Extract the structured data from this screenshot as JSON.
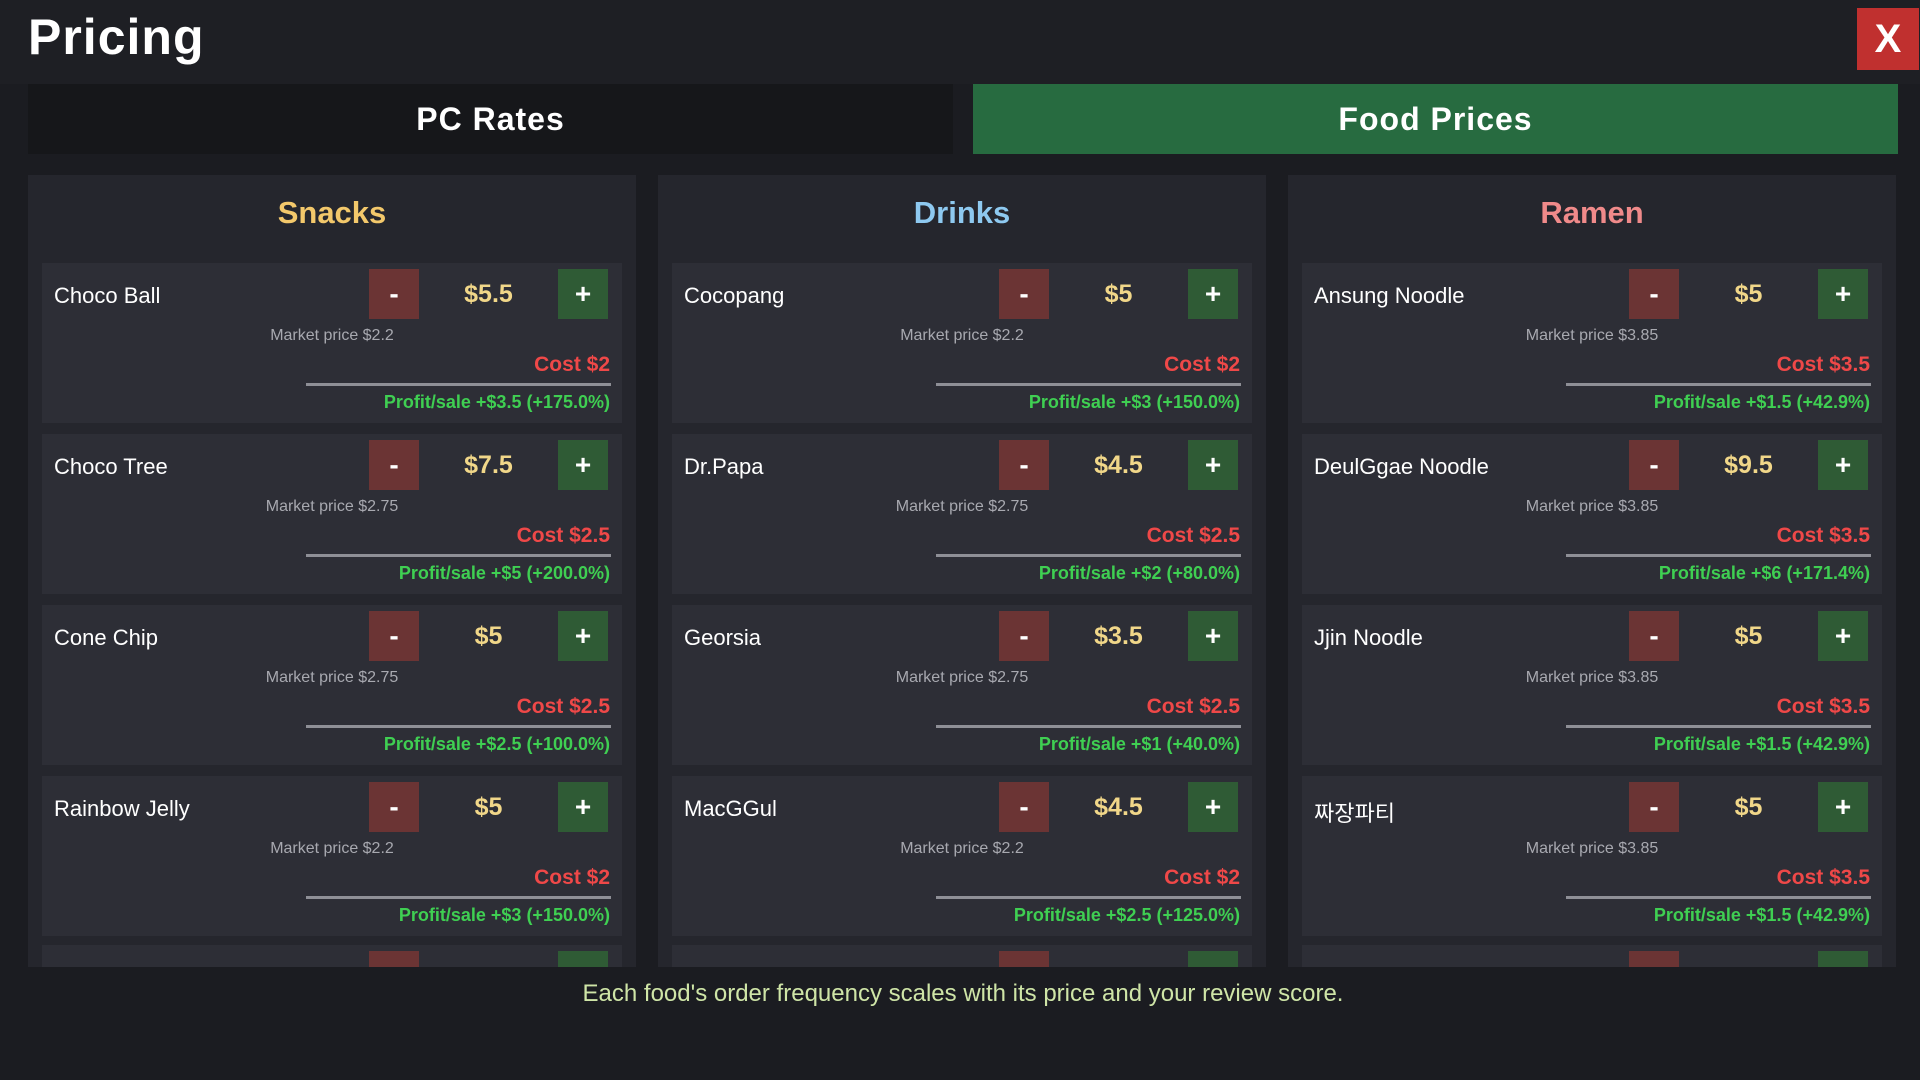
{
  "window": {
    "title": "Pricing",
    "close_label": "X"
  },
  "tabs": [
    {
      "label": "PC Rates",
      "active": false
    },
    {
      "label": "Food Prices",
      "active": true
    }
  ],
  "colors": {
    "active_tab": "#276b40",
    "snacks_title": "#f3c86b",
    "drinks_title": "#8ec9f0",
    "ramen_title": "#f08a8a",
    "price": "#f1d789",
    "cost": "#ef4848",
    "profit": "#3fcf52",
    "close": "#c0302f"
  },
  "buttons": {
    "minus": "-",
    "plus": "+"
  },
  "categories": [
    {
      "title": "Snacks",
      "items": [
        {
          "name": "Choco Ball",
          "price": "$5.5",
          "market": "Market price $2.2",
          "cost": "Cost $2",
          "profit": "Profit/sale +$3.5 (+175.0%)"
        },
        {
          "name": "Choco Tree",
          "price": "$7.5",
          "market": "Market price $2.75",
          "cost": "Cost $2.5",
          "profit": "Profit/sale +$5 (+200.0%)"
        },
        {
          "name": "Cone Chip",
          "price": "$5",
          "market": "Market price $2.75",
          "cost": "Cost $2.5",
          "profit": "Profit/sale +$2.5 (+100.0%)"
        },
        {
          "name": "Rainbow Jelly",
          "price": "$5",
          "market": "Market price $2.2",
          "cost": "Cost $2",
          "profit": "Profit/sale +$3 (+150.0%)"
        }
      ]
    },
    {
      "title": "Drinks",
      "items": [
        {
          "name": "Cocopang",
          "price": "$5",
          "market": "Market price $2.2",
          "cost": "Cost $2",
          "profit": "Profit/sale +$3 (+150.0%)"
        },
        {
          "name": "Dr.Papa",
          "price": "$4.5",
          "market": "Market price $2.75",
          "cost": "Cost $2.5",
          "profit": "Profit/sale +$2 (+80.0%)"
        },
        {
          "name": "Georsia",
          "price": "$3.5",
          "market": "Market price $2.75",
          "cost": "Cost $2.5",
          "profit": "Profit/sale +$1 (+40.0%)"
        },
        {
          "name": "MacGGul",
          "price": "$4.5",
          "market": "Market price $2.2",
          "cost": "Cost $2",
          "profit": "Profit/sale +$2.5 (+125.0%)"
        }
      ]
    },
    {
      "title": "Ramen",
      "items": [
        {
          "name": "Ansung Noodle",
          "price": "$5",
          "market": "Market price $3.85",
          "cost": "Cost $3.5",
          "profit": "Profit/sale +$1.5 (+42.9%)"
        },
        {
          "name": "DeulGgae Noodle",
          "price": "$9.5",
          "market": "Market price $3.85",
          "cost": "Cost $3.5",
          "profit": "Profit/sale +$6 (+171.4%)"
        },
        {
          "name": "Jjin Noodle",
          "price": "$5",
          "market": "Market price $3.85",
          "cost": "Cost $3.5",
          "profit": "Profit/sale +$1.5 (+42.9%)"
        },
        {
          "name": "짜장파티",
          "price": "$5",
          "market": "Market price $3.85",
          "cost": "Cost $3.5",
          "profit": "Profit/sale +$1.5 (+42.9%)"
        }
      ]
    }
  ],
  "footer": "Each food's order frequency scales with its price and your review score."
}
